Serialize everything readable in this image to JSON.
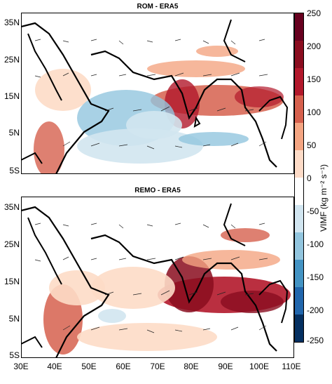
{
  "panels": [
    {
      "title": "ROM - ERA5"
    },
    {
      "title": "REMO - ERA5"
    }
  ],
  "lat_labels": [
    "35N",
    "25N",
    "15N",
    "5N",
    "5S"
  ],
  "lon_labels": [
    "30E",
    "40E",
    "50E",
    "60E",
    "70E",
    "80E",
    "90E",
    "100E",
    "110E"
  ],
  "colorbar": {
    "label": "VIMF (kg m⁻² s⁻¹)",
    "ticks": [
      "250",
      "200",
      "150",
      "100",
      "50",
      "0",
      "-50",
      "-100",
      "-150",
      "-200",
      "-250"
    ],
    "colors": [
      "#67001f",
      "#8a0d1f",
      "#b2182b",
      "#d6604d",
      "#f4a582",
      "#fddbc7",
      "#ffffff",
      "#d1e5f0",
      "#92c5de",
      "#4393c3",
      "#2166ac",
      "#053061"
    ]
  }
}
